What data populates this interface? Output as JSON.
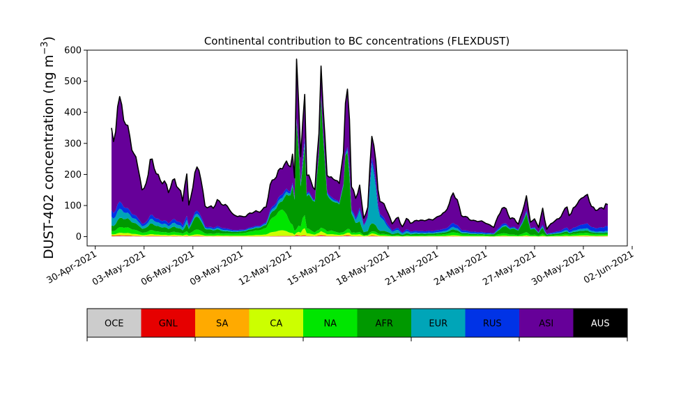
{
  "chart_data": {
    "type": "area",
    "stacked": true,
    "title": "Continental contribution to BC concentrations (FLEXDUST)",
    "ylabel": "DUST-402 concentration (ng m",
    "ylabel_sup": "−3",
    "ylabel_tail": ")",
    "ylim": [
      -30,
      600
    ],
    "yticks": [
      "0",
      "100",
      "200",
      "300",
      "400",
      "500",
      "600"
    ],
    "xlim_days": [
      -1.5,
      31.7
    ],
    "xticks": [
      "30-Apr-2021",
      "03-May-2021",
      "06-May-2021",
      "09-May-2021",
      "12-May-2021",
      "15-May-2021",
      "18-May-2021",
      "21-May-2021",
      "24-May-2021",
      "27-May-2021",
      "30-May-2021",
      "02-Jun-2021"
    ],
    "time": {
      "start": "2021-05-01",
      "end": "2021-05-31T12:00",
      "step_hours": 3
    },
    "total_keypoints": [
      [
        "2021-05-01T00:00",
        340
      ],
      [
        "2021-05-01T04:00",
        270
      ],
      [
        "2021-05-01T10:00",
        480
      ],
      [
        "2021-05-01T18:00",
        380
      ],
      [
        "2021-05-02T04:00",
        310
      ],
      [
        "2021-05-02T10:00",
        270
      ],
      [
        "2021-05-02T18:00",
        190
      ],
      [
        "2021-05-02T22:00",
        130
      ],
      [
        "2021-05-03T05:00",
        200
      ],
      [
        "2021-05-03T10:00",
        255
      ],
      [
        "2021-05-03T18:00",
        200
      ],
      [
        "2021-05-04T00:00",
        185
      ],
      [
        "2021-05-04T06:00",
        180
      ],
      [
        "2021-05-04T12:00",
        140
      ],
      [
        "2021-05-04T20:00",
        190
      ],
      [
        "2021-05-05T05:00",
        150
      ],
      [
        "2021-05-05T10:00",
        100
      ],
      [
        "2021-05-05T14:00",
        235
      ],
      [
        "2021-05-05T18:00",
        100
      ],
      [
        "2021-05-06T04:00",
        210
      ],
      [
        "2021-05-06T10:00",
        215
      ],
      [
        "2021-05-06T18:00",
        100
      ],
      [
        "2021-05-07T06:00",
        90
      ],
      [
        "2021-05-07T12:00",
        120
      ],
      [
        "2021-05-07T22:00",
        100
      ],
      [
        "2021-05-08T06:00",
        90
      ],
      [
        "2021-05-08T12:00",
        70
      ],
      [
        "2021-05-09T00:00",
        62
      ],
      [
        "2021-05-09T12:00",
        75
      ],
      [
        "2021-05-10T00:00",
        80
      ],
      [
        "2021-05-10T12:00",
        95
      ],
      [
        "2021-05-10T18:00",
        160
      ],
      [
        "2021-05-11T00:00",
        195
      ],
      [
        "2021-05-11T12:00",
        220
      ],
      [
        "2021-05-11T18:00",
        235
      ],
      [
        "2021-05-12T00:00",
        240
      ],
      [
        "2021-05-12T04:00",
        270
      ],
      [
        "2021-05-12T06:00",
        180
      ],
      [
        "2021-05-12T09:00",
        570
      ],
      [
        "2021-05-12T12:00",
        430
      ],
      [
        "2021-05-12T15:00",
        250
      ],
      [
        "2021-05-12T21:00",
        490
      ],
      [
        "2021-05-13T00:00",
        200
      ],
      [
        "2021-05-13T12:00",
        150
      ],
      [
        "2021-05-13T18:00",
        350
      ],
      [
        "2021-05-13T21:00",
        570
      ],
      [
        "2021-05-14T00:00",
        400
      ],
      [
        "2021-05-14T06:00",
        200
      ],
      [
        "2021-05-14T12:00",
        190
      ],
      [
        "2021-05-14T18:00",
        190
      ],
      [
        "2021-05-15T00:00",
        160
      ],
      [
        "2021-05-15T06:00",
        280
      ],
      [
        "2021-05-15T10:00",
        480
      ],
      [
        "2021-05-15T14:00",
        470
      ],
      [
        "2021-05-15T18:00",
        160
      ],
      [
        "2021-05-16T00:00",
        120
      ],
      [
        "2021-05-16T06:00",
        170
      ],
      [
        "2021-05-16T09:00",
        110
      ],
      [
        "2021-05-16T12:00",
        60
      ],
      [
        "2021-05-16T18:00",
        90
      ],
      [
        "2021-05-17T00:00",
        335
      ],
      [
        "2021-05-17T04:00",
        300
      ],
      [
        "2021-05-17T10:00",
        120
      ],
      [
        "2021-05-17T18:00",
        100
      ],
      [
        "2021-05-18T00:00",
        80
      ],
      [
        "2021-05-18T06:00",
        40
      ],
      [
        "2021-05-18T14:00",
        65
      ],
      [
        "2021-05-18T20:00",
        30
      ],
      [
        "2021-05-19T04:00",
        60
      ],
      [
        "2021-05-19T10:00",
        40
      ],
      [
        "2021-05-19T18:00",
        55
      ],
      [
        "2021-05-20T04:00",
        50
      ],
      [
        "2021-05-20T12:00",
        55
      ],
      [
        "2021-05-21T00:00",
        60
      ],
      [
        "2021-05-21T12:00",
        80
      ],
      [
        "2021-05-22T00:00",
        135
      ],
      [
        "2021-05-22T06:00",
        120
      ],
      [
        "2021-05-22T12:00",
        70
      ],
      [
        "2021-05-23T00:00",
        55
      ],
      [
        "2021-05-23T12:00",
        50
      ],
      [
        "2021-05-24T00:00",
        45
      ],
      [
        "2021-05-24T12:00",
        30
      ],
      [
        "2021-05-25T00:00",
        95
      ],
      [
        "2021-05-25T06:00",
        90
      ],
      [
        "2021-05-25T12:00",
        55
      ],
      [
        "2021-05-25T18:00",
        60
      ],
      [
        "2021-05-26T00:00",
        40
      ],
      [
        "2021-05-26T06:00",
        80
      ],
      [
        "2021-05-26T12:00",
        125
      ],
      [
        "2021-05-26T18:00",
        50
      ],
      [
        "2021-05-27T00:00",
        55
      ],
      [
        "2021-05-27T06:00",
        30
      ],
      [
        "2021-05-27T12:00",
        90
      ],
      [
        "2021-05-27T18:00",
        25
      ],
      [
        "2021-05-28T00:00",
        40
      ],
      [
        "2021-05-28T06:00",
        50
      ],
      [
        "2021-05-28T12:00",
        60
      ],
      [
        "2021-05-29T00:00",
        95
      ],
      [
        "2021-05-29T04:00",
        60
      ],
      [
        "2021-05-29T10:00",
        100
      ],
      [
        "2021-05-29T18:00",
        110
      ],
      [
        "2021-05-30T00:00",
        130
      ],
      [
        "2021-05-30T06:00",
        135
      ],
      [
        "2021-05-30T12:00",
        100
      ],
      [
        "2021-05-30T18:00",
        80
      ],
      [
        "2021-05-31T00:00",
        95
      ],
      [
        "2021-05-31T06:00",
        90
      ],
      [
        "2021-05-31T09:00",
        110
      ],
      [
        "2021-05-31T12:00",
        100
      ]
    ],
    "fraction_keypoints": {
      "times": [
        "2021-05-01T00:00",
        "2021-05-02T00:00",
        "2021-05-05T12:00",
        "2021-05-06T00:00",
        "2021-05-08T00:00",
        "2021-05-10T12:00",
        "2021-05-11T12:00",
        "2021-05-12T09:00",
        "2021-05-12T18:00",
        "2021-05-13T21:00",
        "2021-05-14T12:00",
        "2021-05-15T10:00",
        "2021-05-16T00:00",
        "2021-05-17T00:00",
        "2021-05-18T00:00",
        "2021-05-20T00:00",
        "2021-05-24T00:00",
        "2021-05-26T12:00",
        "2021-05-28T00:00",
        "2021-05-31T12:00"
      ],
      "series": [
        {
          "name": "OCE",
          "values": [
            0.004,
            0.004,
            0.004,
            0.004,
            0.004,
            0.004,
            0.004,
            0.004,
            0.004,
            0.004,
            0.004,
            0.004,
            0.004,
            0.004,
            0.004,
            0.004,
            0.004,
            0.004,
            0.004,
            0.004
          ]
        },
        {
          "name": "GNL",
          "values": [
            0.004,
            0.004,
            0.004,
            0.004,
            0.004,
            0.004,
            0.004,
            0.004,
            0.004,
            0.004,
            0.004,
            0.004,
            0.004,
            0.004,
            0.004,
            0.004,
            0.004,
            0.004,
            0.004,
            0.004
          ]
        },
        {
          "name": "SA",
          "values": [
            0.004,
            0.004,
            0.004,
            0.004,
            0.004,
            0.004,
            0.004,
            0.004,
            0.004,
            0.004,
            0.004,
            0.004,
            0.004,
            0.004,
            0.004,
            0.004,
            0.004,
            0.004,
            0.004,
            0.004
          ]
        },
        {
          "name": "CA",
          "values": [
            0.01,
            0.02,
            0.02,
            0.02,
            0.02,
            0.06,
            0.08,
            0.01,
            0.05,
            0.02,
            0.03,
            0.01,
            0.04,
            0.02,
            0.02,
            0.02,
            0.02,
            0.02,
            0.02,
            0.02
          ]
        },
        {
          "name": "NA",
          "values": [
            0.03,
            0.05,
            0.05,
            0.07,
            0.06,
            0.22,
            0.3,
            0.02,
            0.1,
            0.02,
            0.06,
            0.02,
            0.05,
            0.02,
            0.06,
            0.06,
            0.08,
            0.08,
            0.07,
            0.05
          ]
        },
        {
          "name": "AFR",
          "values": [
            0.05,
            0.08,
            0.09,
            0.2,
            0.07,
            0.1,
            0.12,
            0.6,
            0.45,
            0.75,
            0.5,
            0.56,
            0.25,
            0.08,
            0.1,
            0.08,
            0.05,
            0.45,
            0.08,
            0.04
          ]
        },
        {
          "name": "EUR",
          "values": [
            0.08,
            0.05,
            0.07,
            0.04,
            0.04,
            0.04,
            0.05,
            0.01,
            0.03,
            0.01,
            0.03,
            0.01,
            0.08,
            0.6,
            0.2,
            0.06,
            0.05,
            0.04,
            0.05,
            0.05
          ]
        },
        {
          "name": "RUS",
          "values": [
            0.06,
            0.04,
            0.07,
            0.04,
            0.05,
            0.04,
            0.05,
            0.01,
            0.03,
            0.01,
            0.03,
            0.01,
            0.05,
            0.05,
            0.1,
            0.1,
            0.08,
            0.04,
            0.06,
            0.15
          ]
        },
        {
          "name": "ASI",
          "values": [
            0.75,
            0.73,
            0.68,
            0.6,
            0.74,
            0.52,
            0.37,
            0.33,
            0.32,
            0.17,
            0.33,
            0.37,
            0.51,
            0.21,
            0.5,
            0.66,
            0.7,
            0.35,
            0.7,
            0.67
          ]
        },
        {
          "name": "AUS",
          "values": [
            0.0,
            0.0,
            0.0,
            0.0,
            0.0,
            0.0,
            0.0,
            0.0,
            0.0,
            0.0,
            0.0,
            0.0,
            0.0,
            0.0,
            0.0,
            0.0,
            0.0,
            0.0,
            0.0,
            0.0
          ]
        }
      ]
    },
    "legend": {
      "placement": "bottom-colorbar",
      "entries": [
        {
          "name": "OCE",
          "color": "#cccccc"
        },
        {
          "name": "GNL",
          "color": "#e60000"
        },
        {
          "name": "SA",
          "color": "#ffaa00"
        },
        {
          "name": "CA",
          "color": "#ccff00"
        },
        {
          "name": "NA",
          "color": "#00e600"
        },
        {
          "name": "AFR",
          "color": "#009900"
        },
        {
          "name": "EUR",
          "color": "#00a5b8"
        },
        {
          "name": "RUS",
          "color": "#0033e6"
        },
        {
          "name": "ASI",
          "color": "#660099"
        },
        {
          "name": "AUS",
          "color": "#000000"
        }
      ]
    },
    "total_line_color": "#000000",
    "grid": false
  }
}
